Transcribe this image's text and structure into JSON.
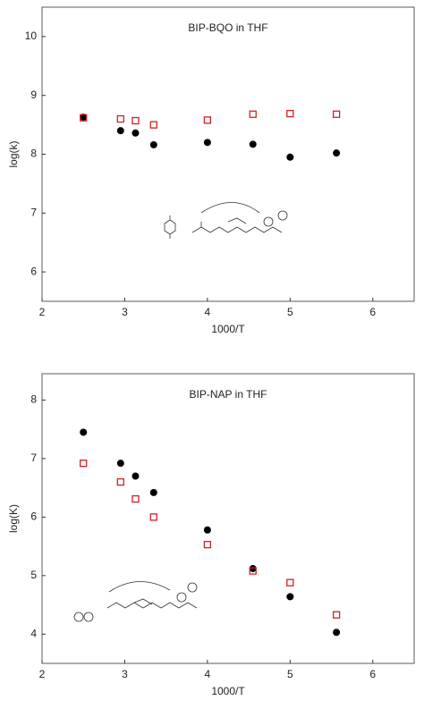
{
  "chart_data": [
    {
      "type": "scatter",
      "title": "BIP-BQO in THF",
      "x_label": "1000/T",
      "y_label": "log(k)",
      "x": [
        2.5,
        2.95,
        3.13,
        3.35,
        4.0,
        4.55,
        5.0,
        5.56
      ],
      "series": [
        {
          "color": "#000000",
          "marker": "filled-circle",
          "values": [
            8.63,
            8.4,
            8.36,
            8.16,
            8.2,
            8.17,
            7.95,
            8.02
          ]
        },
        {
          "color": "#d0202a",
          "marker": "open-square",
          "values": [
            8.62,
            8.6,
            8.57,
            8.5,
            8.58,
            8.68,
            8.69,
            8.68
          ]
        }
      ],
      "xlim": [
        2,
        6.5
      ],
      "xticks": [
        2,
        3,
        4,
        5,
        6
      ],
      "ylim": [
        5.5,
        10.5
      ],
      "yticks": [
        6,
        7,
        8,
        9,
        10
      ]
    },
    {
      "type": "scatter",
      "title": "BIP-NAP in THF",
      "x_label": "1000/T",
      "y_label": "log(K)",
      "x": [
        2.5,
        2.95,
        3.13,
        3.35,
        4.0,
        4.55,
        5.0,
        5.56
      ],
      "series": [
        {
          "color": "#000000",
          "marker": "filled-circle",
          "values": [
            7.45,
            6.92,
            6.7,
            6.42,
            5.78,
            5.12,
            4.64,
            4.03
          ]
        },
        {
          "color": "#d0202a",
          "marker": "open-square",
          "values": [
            6.92,
            6.6,
            6.31,
            6.0,
            5.53,
            5.08,
            4.88,
            4.33
          ]
        }
      ],
      "xlim": [
        2,
        6.5
      ],
      "xticks": [
        2,
        3,
        4,
        5,
        6
      ],
      "ylim": [
        3.5,
        8.45
      ],
      "yticks": [
        4,
        5,
        6,
        7,
        8
      ]
    }
  ]
}
